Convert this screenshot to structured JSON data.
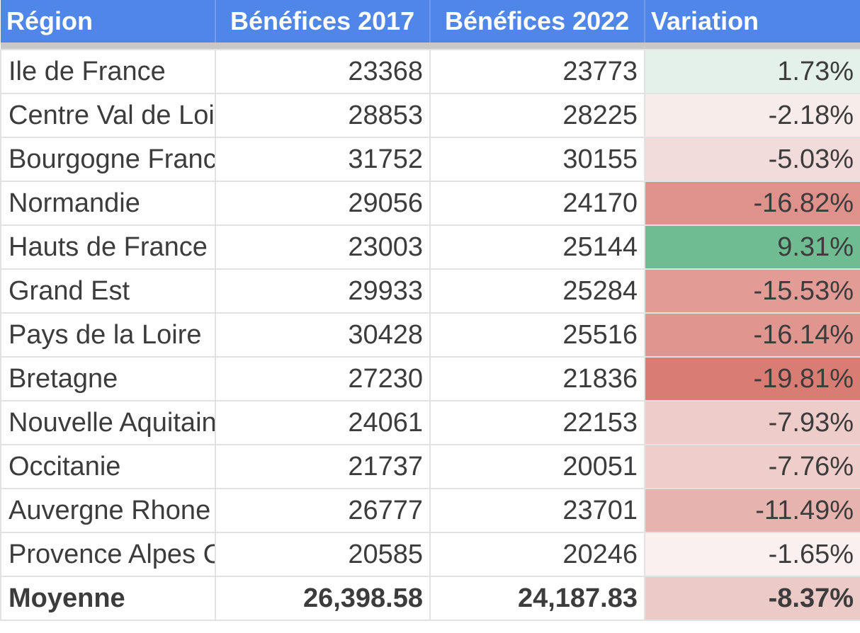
{
  "headers": {
    "region": "Région",
    "benefices_2017": "Bénéfices 2017",
    "benefices_2022": "Bénéfices 2022",
    "variation": "Variation"
  },
  "rows": [
    {
      "region": "Ile de France",
      "b2017": "23368",
      "b2022": "23773",
      "variation": "1.73%",
      "variation_value": 1.73,
      "cell_color": "#e3f1ea"
    },
    {
      "region": "Centre Val de Loire",
      "b2017": "28853",
      "b2022": "28225",
      "variation": "-2.18%",
      "variation_value": -2.18,
      "cell_color": "#f8eceb"
    },
    {
      "region": "Bourgogne Franche Comté",
      "b2017": "31752",
      "b2022": "30155",
      "variation": "-5.03%",
      "variation_value": -5.03,
      "cell_color": "#f2dcdb"
    },
    {
      "region": "Normandie",
      "b2017": "29056",
      "b2022": "24170",
      "variation": "-16.82%",
      "variation_value": -16.82,
      "cell_color": "#de928b"
    },
    {
      "region": "Hauts de France",
      "b2017": "23003",
      "b2022": "25144",
      "variation": "9.31%",
      "variation_value": 9.31,
      "cell_color": "#6fbc92"
    },
    {
      "region": "Grand Est",
      "b2017": "29933",
      "b2022": "25284",
      "variation": "-15.53%",
      "variation_value": -15.53,
      "cell_color": "#e29b95"
    },
    {
      "region": "Pays de la Loire",
      "b2017": "30428",
      "b2022": "25516",
      "variation": "-16.14%",
      "variation_value": -16.14,
      "cell_color": "#e0968f"
    },
    {
      "region": "Bretagne",
      "b2017": "27230",
      "b2022": "21836",
      "variation": "-19.81%",
      "variation_value": -19.81,
      "cell_color": "#d97d74"
    },
    {
      "region": "Nouvelle Aquitaine",
      "b2017": "24061",
      "b2022": "22153",
      "variation": "-7.93%",
      "variation_value": -7.93,
      "cell_color": "#eeccc9"
    },
    {
      "region": "Occitanie",
      "b2017": "21737",
      "b2022": "20051",
      "variation": "-7.76%",
      "variation_value": -7.76,
      "cell_color": "#eecdca"
    },
    {
      "region": "Auvergne Rhone Alpes",
      "b2017": "26777",
      "b2022": "23701",
      "variation": "-11.49%",
      "variation_value": -11.49,
      "cell_color": "#e7b3ae"
    },
    {
      "region": "Provence Alpes Côte d'Azur",
      "b2017": "20585",
      "b2022": "20246",
      "variation": "-1.65%",
      "variation_value": -1.65,
      "cell_color": "#faf0ef"
    }
  ],
  "total": {
    "label": "Moyenne",
    "b2017": "26,398.58",
    "b2022": "24,187.83",
    "variation": "-8.37%",
    "variation_value": -8.37,
    "cell_color": "#eccac7"
  },
  "colors": {
    "header_bg": "#4f86e8",
    "header_text": "#ffffff",
    "grid_line": "#e2e2e2",
    "text": "#3c3c3c",
    "positive_max": "#6fbc92",
    "negative_max": "#d97d74"
  }
}
